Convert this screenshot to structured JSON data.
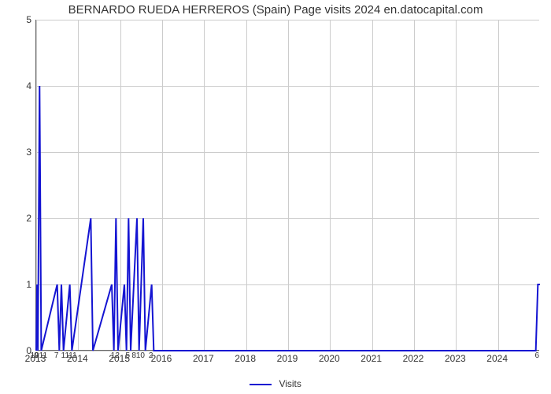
{
  "chart": {
    "type": "line",
    "title": "BERNARDO RUEDA HERREROS (Spain) Page visits 2024 en.datocapital.com",
    "title_fontsize": 15,
    "title_color": "#333333",
    "background_color": "#ffffff",
    "grid_color": "#cccccc",
    "axis_color": "#666666",
    "tick_fontsize": 12,
    "tick_color": "#333333",
    "minor_tick_fontsize": 10,
    "x_axis": {
      "domain_min": 2013,
      "domain_max": 2025,
      "major_ticks": [
        2013,
        2014,
        2015,
        2016,
        2017,
        2018,
        2019,
        2020,
        2021,
        2022,
        2023,
        2024
      ],
      "minor_labels": [
        {
          "x": 2013.02,
          "label": "9"
        },
        {
          "x": 2013.08,
          "label": "1011"
        },
        {
          "x": 2013.5,
          "label": "7"
        },
        {
          "x": 2013.8,
          "label": "1111"
        },
        {
          "x": 2014.9,
          "label": "12"
        },
        {
          "x": 2015.2,
          "label": "5"
        },
        {
          "x": 2015.45,
          "label": "810"
        },
        {
          "x": 2015.75,
          "label": "2"
        },
        {
          "x": 2024.95,
          "label": "6"
        }
      ]
    },
    "y_axis": {
      "domain_min": 0,
      "domain_max": 5,
      "major_ticks": [
        0,
        1,
        2,
        3,
        4,
        5
      ]
    },
    "series": {
      "name": "Visits",
      "color": "#1414d2",
      "line_width": 2,
      "points": [
        [
          2013.0,
          0
        ],
        [
          2013.02,
          1
        ],
        [
          2013.04,
          0
        ],
        [
          2013.08,
          4
        ],
        [
          2013.12,
          0
        ],
        [
          2013.5,
          1
        ],
        [
          2013.55,
          0
        ],
        [
          2013.6,
          1
        ],
        [
          2013.65,
          0
        ],
        [
          2013.8,
          1
        ],
        [
          2013.85,
          0
        ],
        [
          2014.3,
          2
        ],
        [
          2014.35,
          0
        ],
        [
          2014.8,
          1
        ],
        [
          2014.85,
          0
        ],
        [
          2014.9,
          2
        ],
        [
          2014.95,
          0
        ],
        [
          2015.1,
          1
        ],
        [
          2015.15,
          0
        ],
        [
          2015.2,
          2
        ],
        [
          2015.25,
          0
        ],
        [
          2015.4,
          2
        ],
        [
          2015.45,
          0
        ],
        [
          2015.55,
          2
        ],
        [
          2015.6,
          0
        ],
        [
          2015.75,
          1
        ],
        [
          2015.8,
          0
        ],
        [
          2024.9,
          0
        ],
        [
          2024.95,
          1
        ],
        [
          2025.0,
          1
        ]
      ]
    },
    "legend_label": "Visits"
  }
}
